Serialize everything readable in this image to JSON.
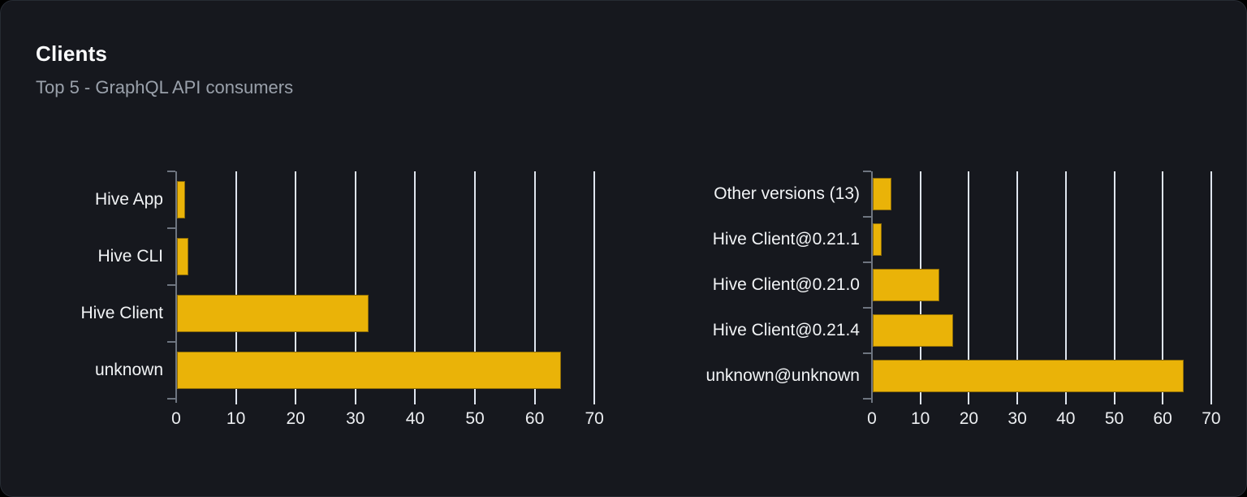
{
  "card": {
    "title": "Clients",
    "subtitle": "Top 5 - GraphQL API consumers"
  },
  "colors": {
    "bar": "#eab308",
    "bar_border": "#7d5f07",
    "card_bg": "#16181e",
    "page_bg": "#000000",
    "card_border": "#262b33",
    "gridline": "#dfe5ef",
    "axis": "#6e7580",
    "category_label": "#f2f4f6",
    "tick_label": "#eceef1",
    "title": "#fafbfc",
    "subtitle": "#9aa1ab"
  },
  "chart_data": [
    {
      "type": "bar",
      "orientation": "horizontal",
      "name": "clients-by-name",
      "categories": [
        "Hive App",
        "Hive CLI",
        "Hive Client",
        "unknown"
      ],
      "values": [
        1.3,
        1.9,
        32,
        64.2
      ],
      "xlim": [
        0,
        70
      ],
      "xticks": [
        0,
        10,
        20,
        30,
        40,
        50,
        60,
        70
      ],
      "grid": true,
      "legend": "none",
      "xlabel": "",
      "ylabel": ""
    },
    {
      "type": "bar",
      "orientation": "horizontal",
      "name": "clients-by-version",
      "categories": [
        "Other versions (13)",
        "Hive Client@0.21.1",
        "Hive Client@0.21.0",
        "Hive Client@0.21.4",
        "unknown@unknown"
      ],
      "values": [
        3.9,
        1.8,
        13.8,
        16.6,
        64.1
      ],
      "xlim": [
        0,
        70
      ],
      "xticks": [
        0,
        10,
        20,
        30,
        40,
        50,
        60,
        70
      ],
      "grid": true,
      "legend": "none",
      "xlabel": "",
      "ylabel": ""
    }
  ]
}
